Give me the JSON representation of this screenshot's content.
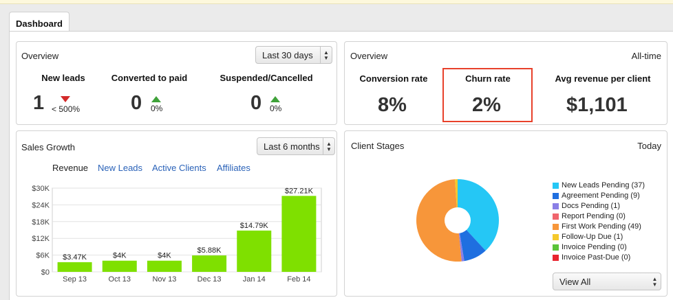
{
  "tabs": [
    {
      "label": "Dashboard"
    }
  ],
  "overview_left": {
    "title": "Overview",
    "range": "Last 30 days",
    "metrics": [
      {
        "label": "New leads",
        "value": "1",
        "change": "< 500%",
        "trend": "down"
      },
      {
        "label": "Converted to paid",
        "value": "0",
        "change": "0%",
        "trend": "up"
      },
      {
        "label": "Suspended/Cancelled",
        "value": "0",
        "change": "0%",
        "trend": "up"
      }
    ]
  },
  "overview_right": {
    "title": "Overview",
    "range": "All-time",
    "metrics": [
      {
        "label": "Conversion rate",
        "value": "8%"
      },
      {
        "label": "Churn rate",
        "value": "2%"
      },
      {
        "label": "Avg revenue per client",
        "value": "$1,101"
      }
    ]
  },
  "sales_growth": {
    "title": "Sales Growth",
    "range": "Last 6 months",
    "legend": [
      "Revenue",
      "New Leads",
      "Active Clients",
      "Affiliates"
    ]
  },
  "client_stages": {
    "title": "Client Stages",
    "range": "Today",
    "view_all": "View All",
    "legend": [
      {
        "label": "New Leads Pending (37)",
        "color": "#25c7f5"
      },
      {
        "label": "Agreement Pending (9)",
        "color": "#1f6fe0"
      },
      {
        "label": "Docs Pending (1)",
        "color": "#8a7fe6"
      },
      {
        "label": "Report Pending (0)",
        "color": "#f0656d"
      },
      {
        "label": "First Work Pending (49)",
        "color": "#f7963a"
      },
      {
        "label": "Follow-Up Due (1)",
        "color": "#f5c92c"
      },
      {
        "label": "Invoice Pending (0)",
        "color": "#5bc43a"
      },
      {
        "label": "Invoice Past-Due (0)",
        "color": "#e8242e"
      }
    ]
  },
  "colors": {
    "bar": "#7fe000",
    "link": "#2a62b8",
    "up": "#3fa23a",
    "down": "#d42a2a",
    "highlight": "#e8402a"
  },
  "chart_data": [
    {
      "type": "bar",
      "title": "Sales Growth",
      "categories": [
        "Sep 13",
        "Oct 13",
        "Nov 13",
        "Dec 13",
        "Jan 14",
        "Feb 14"
      ],
      "series": [
        {
          "name": "Revenue",
          "values": [
            3470,
            4000,
            4000,
            5880,
            14790,
            27210
          ]
        }
      ],
      "data_labels": [
        "$3.47K",
        "$4K",
        "$4K",
        "$5.88K",
        "$14.79K",
        "$27.21K"
      ],
      "yticks": [
        "$0",
        "$6K",
        "$12K",
        "$18K",
        "$24K",
        "$30K"
      ],
      "ylim": [
        0,
        30000
      ],
      "grid": true
    },
    {
      "type": "pie",
      "title": "Client Stages",
      "labels": [
        "New Leads Pending",
        "Agreement Pending",
        "Docs Pending",
        "Report Pending",
        "First Work Pending",
        "Follow-Up Due",
        "Invoice Pending",
        "Invoice Past-Due"
      ],
      "values": [
        37,
        9,
        1,
        0,
        49,
        1,
        0,
        0
      ]
    }
  ]
}
